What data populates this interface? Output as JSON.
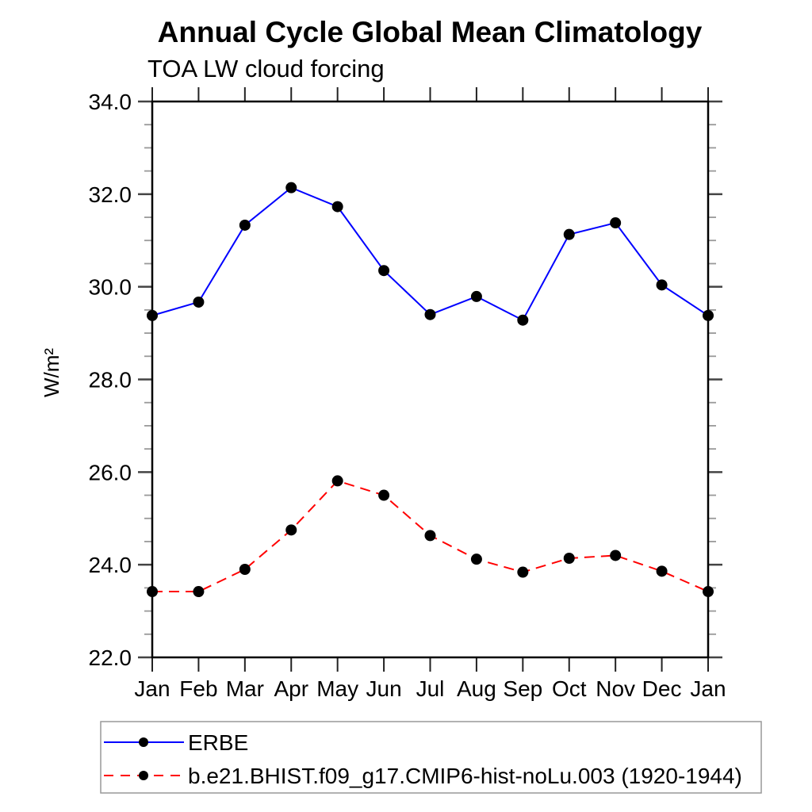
{
  "page": {
    "background": "#ffffff"
  },
  "chart": {
    "title": "Annual Cycle Global Mean Climatology",
    "subtitle": "TOA LW cloud forcing",
    "ylabel": "W/m²"
  },
  "chart_data": {
    "type": "line",
    "title": "Annual Cycle Global Mean Climatology",
    "subtitle": "TOA LW cloud forcing",
    "xlabel": "",
    "ylabel": "W/m²",
    "categories": [
      "Jan",
      "Feb",
      "Mar",
      "Apr",
      "May",
      "Jun",
      "Jul",
      "Aug",
      "Sep",
      "Oct",
      "Nov",
      "Dec",
      "Jan"
    ],
    "series": [
      {
        "name": "ERBE",
        "color": "#0000ff",
        "line_style": "solid",
        "marker": "circle",
        "marker_color": "#000000",
        "values": [
          29.38,
          29.67,
          31.33,
          32.14,
          31.73,
          30.35,
          29.4,
          29.79,
          29.28,
          31.13,
          31.38,
          30.04,
          29.38
        ]
      },
      {
        "name": "b.e21.BHIST.f09_g17.CMIP6-hist-noLu.003 (1920-1944)",
        "color": "#ff0000",
        "line_style": "dashed",
        "marker": "circle",
        "marker_color": "#000000",
        "values": [
          23.42,
          23.42,
          23.9,
          24.75,
          25.81,
          25.5,
          24.63,
          24.12,
          23.84,
          24.14,
          24.2,
          23.86,
          23.42
        ]
      }
    ],
    "ylim": [
      22.0,
      34.0
    ],
    "ytick_major_step": 2.0,
    "ytick_minor_step": 0.5,
    "ytick_labels": [
      "22.0",
      "24.0",
      "26.0",
      "28.0",
      "30.0",
      "32.0",
      "34.0"
    ],
    "grid": false,
    "legend_position": "bottom-left-box"
  },
  "colors": {
    "frame": "#000000",
    "major_tick": "#444444",
    "minor_tick": "#999999",
    "month_tick": "#222222",
    "legend_border": "#999999"
  }
}
